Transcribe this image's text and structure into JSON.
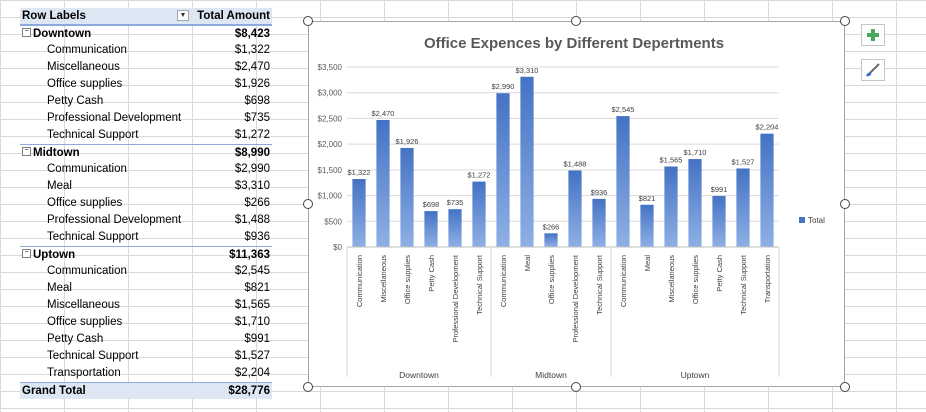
{
  "pivot": {
    "header": {
      "row_labels": "Row Labels",
      "total_amount": "Total Amount"
    },
    "groups": [
      {
        "name": "Downtown",
        "total": "$8,423",
        "items": [
          {
            "label": "Communication",
            "amount": "$1,322"
          },
          {
            "label": "Miscellaneous",
            "amount": "$2,470"
          },
          {
            "label": "Office supplies",
            "amount": "$1,926"
          },
          {
            "label": "Petty Cash",
            "amount": "$698"
          },
          {
            "label": "Professional Development",
            "amount": "$735"
          },
          {
            "label": "Technical Support",
            "amount": "$1,272"
          }
        ]
      },
      {
        "name": "Midtown",
        "total": "$8,990",
        "items": [
          {
            "label": "Communication",
            "amount": "$2,990"
          },
          {
            "label": "Meal",
            "amount": "$3,310"
          },
          {
            "label": "Office supplies",
            "amount": "$266"
          },
          {
            "label": "Professional Development",
            "amount": "$1,488"
          },
          {
            "label": "Technical Support",
            "amount": "$936"
          }
        ]
      },
      {
        "name": "Uptown",
        "total": "$11,363",
        "items": [
          {
            "label": "Communication",
            "amount": "$2,545"
          },
          {
            "label": "Meal",
            "amount": "$821"
          },
          {
            "label": "Miscellaneous",
            "amount": "$1,565"
          },
          {
            "label": "Office supplies",
            "amount": "$1,710"
          },
          {
            "label": "Petty Cash",
            "amount": "$991"
          },
          {
            "label": "Technical Support",
            "amount": "$1,527"
          },
          {
            "label": "Transportation",
            "amount": "$2,204"
          }
        ]
      }
    ],
    "grand_total": {
      "label": "Grand Total",
      "amount": "$28,776"
    },
    "collapse_glyph": "⊟"
  },
  "chart_data": {
    "type": "bar",
    "title": "Office Expences by Different Depertments",
    "xlabel": "",
    "ylabel": "",
    "ylim": [
      0,
      3500
    ],
    "yticks": [
      0,
      500,
      1000,
      1500,
      2000,
      2500,
      3000,
      3500
    ],
    "ytick_labels": [
      "$0",
      "$500",
      "$1,000",
      "$1,500",
      "$2,000",
      "$2,500",
      "$3,000",
      "$3,500"
    ],
    "grid": true,
    "legend": {
      "position": "right",
      "entries": [
        "Total"
      ]
    },
    "bar_color": "#4472c4",
    "groups": [
      {
        "name": "Downtown",
        "categories": [
          "Communication",
          "Miscellaneous",
          "Office supplies",
          "Petty Cash",
          "Professional Development",
          "Technical Support"
        ],
        "values": [
          1322,
          2470,
          1926,
          698,
          735,
          1272
        ],
        "labels": [
          "$1,322",
          "$2,470",
          "$1,926",
          "$698",
          "$735",
          "$1,272"
        ]
      },
      {
        "name": "Midtown",
        "categories": [
          "Communication",
          "Meal",
          "Office supplies",
          "Professional Development",
          "Technical Support"
        ],
        "values": [
          2990,
          3310,
          266,
          1488,
          936
        ],
        "labels": [
          "$2,990",
          "$3,310",
          "$266",
          "$1,488",
          "$936"
        ]
      },
      {
        "name": "Uptown",
        "categories": [
          "Communication",
          "Meal",
          "Miscellaneous",
          "Office supplies",
          "Petty Cash",
          "Technical Support",
          "Transportation"
        ],
        "values": [
          2545,
          821,
          1565,
          1710,
          991,
          1527,
          2204
        ],
        "labels": [
          "$2,545",
          "$821",
          "$1,565",
          "$1,710",
          "$991",
          "$1,527",
          "$2,204"
        ]
      }
    ]
  },
  "icons": {
    "add_element": "plus-icon",
    "chart_style": "brush-icon"
  },
  "colors": {
    "header_fill": "#dde7f3",
    "accent": "#4472c4",
    "plus_green": "#4aa85c"
  }
}
